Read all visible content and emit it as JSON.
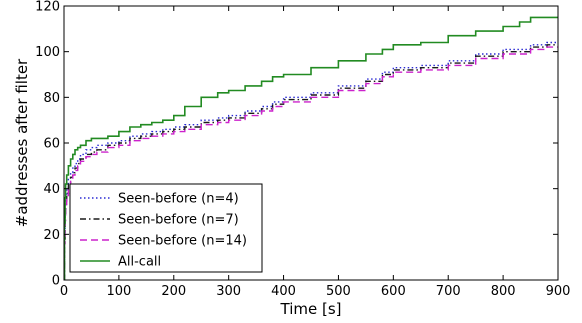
{
  "chart_data": {
    "type": "line",
    "xlabel": "Time [s]",
    "ylabel": "#addresses after filter",
    "xlim": [
      0,
      900
    ],
    "ylim": [
      0,
      120
    ],
    "xticks": [
      0,
      100,
      200,
      300,
      400,
      500,
      600,
      700,
      800,
      900
    ],
    "yticks": [
      0,
      20,
      40,
      60,
      80,
      100,
      120
    ],
    "grid": false,
    "legend_position": "bottom-left",
    "series": [
      {
        "name": "Seen-before (n=4)",
        "color": "#2b2bd4",
        "dash": "dotted",
        "step": true,
        "x": [
          0,
          1,
          2,
          3,
          5,
          8,
          12,
          16,
          20,
          25,
          30,
          40,
          50,
          60,
          80,
          100,
          120,
          140,
          160,
          180,
          200,
          220,
          250,
          280,
          300,
          330,
          360,
          380,
          400,
          450,
          500,
          550,
          580,
          600,
          650,
          700,
          750,
          800,
          850,
          880,
          900
        ],
        "y": [
          0,
          20,
          30,
          36,
          40,
          44,
          47,
          49,
          51,
          53,
          55,
          57,
          58,
          59,
          60,
          61,
          63,
          64,
          65,
          66,
          67,
          68,
          70,
          71,
          72,
          74,
          76,
          78,
          80,
          82,
          85,
          88,
          91,
          93,
          94,
          96,
          99,
          101,
          103,
          104,
          104
        ]
      },
      {
        "name": "Seen-before (n=7)",
        "color": "#1a1a1a",
        "dash": "dashdot",
        "step": true,
        "x": [
          0,
          1,
          2,
          3,
          5,
          8,
          12,
          16,
          20,
          25,
          30,
          40,
          50,
          60,
          80,
          100,
          120,
          140,
          160,
          180,
          200,
          220,
          250,
          280,
          300,
          330,
          360,
          380,
          400,
          450,
          500,
          550,
          580,
          600,
          650,
          700,
          750,
          800,
          850,
          880,
          900
        ],
        "y": [
          0,
          18,
          28,
          34,
          38,
          42,
          45,
          47,
          49,
          51,
          53,
          55,
          56,
          57,
          59,
          60,
          62,
          63,
          64,
          65,
          66,
          67,
          69,
          70,
          71,
          73,
          75,
          77,
          79,
          81,
          84,
          87,
          90,
          92,
          93,
          95,
          98,
          100,
          102,
          103,
          103
        ]
      },
      {
        "name": "Seen-before (n=14)",
        "color": "#cc22cc",
        "dash": "dashed",
        "step": true,
        "x": [
          0,
          1,
          2,
          3,
          5,
          8,
          12,
          16,
          20,
          25,
          30,
          40,
          50,
          60,
          80,
          100,
          120,
          140,
          160,
          180,
          200,
          220,
          250,
          280,
          300,
          330,
          360,
          380,
          400,
          450,
          500,
          550,
          580,
          600,
          650,
          700,
          750,
          800,
          850,
          880,
          900
        ],
        "y": [
          0,
          16,
          26,
          33,
          37,
          41,
          44,
          46,
          48,
          50,
          52,
          54,
          55,
          56,
          58,
          59,
          61,
          62,
          63,
          64,
          65,
          66,
          68,
          69,
          70,
          72,
          74,
          76,
          78,
          80,
          83,
          86,
          89,
          91,
          92,
          94,
          97,
          99,
          101,
          102,
          102
        ]
      },
      {
        "name": "All-call",
        "color": "#228b22",
        "dash": "solid",
        "step": true,
        "x": [
          0,
          1,
          2,
          3,
          5,
          8,
          12,
          16,
          20,
          25,
          30,
          40,
          50,
          60,
          80,
          100,
          120,
          140,
          160,
          180,
          200,
          220,
          250,
          280,
          300,
          330,
          360,
          380,
          400,
          450,
          500,
          550,
          580,
          600,
          650,
          700,
          750,
          800,
          830,
          850,
          900
        ],
        "y": [
          0,
          25,
          36,
          42,
          46,
          50,
          53,
          55,
          57,
          58,
          59,
          61,
          62,
          62,
          63,
          65,
          67,
          68,
          69,
          70,
          72,
          76,
          80,
          82,
          83,
          85,
          87,
          89,
          90,
          93,
          96,
          99,
          101,
          103,
          104,
          107,
          109,
          111,
          113,
          115,
          115
        ]
      }
    ]
  }
}
